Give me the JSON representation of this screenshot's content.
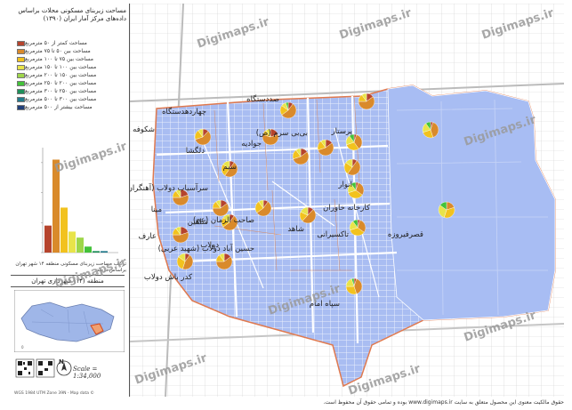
{
  "panel": {
    "title": "مساحت زیربنای مسکونی محلات براساس داده‌های مرکز آمار ایران (۱۳۹۰)"
  },
  "legend": [
    {
      "label": "مساحت کمتر از ۵۰ مترمربع",
      "color": "#b5442d"
    },
    {
      "label": "مساحت بین ۵۰ تا ۷۵ مترمربع",
      "color": "#d98a2b"
    },
    {
      "label": "مساحت بین ۷۵ تا ۱۰۰ مترمربع",
      "color": "#f2c21e"
    },
    {
      "label": "مساحت بین ۱۰۰ تا ۱۵۰ مترمربع",
      "color": "#e8e44a"
    },
    {
      "label": "مساحت بین ۱۵۰ تا ۲۰۰ مترمربع",
      "color": "#9ed64a"
    },
    {
      "label": "مساحت بین ۲۰۰ تا ۲۵۰ مترمربع",
      "color": "#43c23a"
    },
    {
      "label": "مساحت بین ۲۵۰ تا ۳۰۰ مترمربع",
      "color": "#1f8f5a"
    },
    {
      "label": "مساحت بین ۳۰۰ تا ۵۰۰ مترمربع",
      "color": "#237a8c"
    },
    {
      "label": "مساحت بیشتر از ۵۰۰ مترمربع",
      "color": "#213f7a"
    }
  ],
  "histogram": {
    "caption": "ترکیب مساحت زیربنای مسکونی منطقه ۱۴ شهر تهران براساس درصد",
    "values": [
      18,
      62,
      30,
      14,
      10,
      4,
      1,
      1,
      0
    ]
  },
  "inset": {
    "title": "منطقه (۱۴) شهرداری تهران"
  },
  "scale": {
    "text": "Scale = 1:34,000",
    "north": "N"
  },
  "credit": "WGS 1984 UTM Zone 39N - Map data ©",
  "footer": "حقوق مالکیت معنوی این محصول متعلق به سایت www.digimaps.ir بوده و تمامی حقوق آن محفوظ است.",
  "watermark": "Digimaps.ir",
  "neighborhoods": [
    {
      "name": "صددستگاه"
    },
    {
      "name": "چهاردهدستگاه"
    },
    {
      "name": "شکوفه"
    },
    {
      "name": "دلگشا"
    },
    {
      "name": "جوادیه"
    },
    {
      "name": "بی‌بی سرم (ص)"
    },
    {
      "name": "پرستار"
    },
    {
      "name": "سیم"
    },
    {
      "name": "سرآسیاب دولاب (آهنگران)"
    },
    {
      "name": "انوار"
    },
    {
      "name": "مینا"
    },
    {
      "name": "شاهین"
    },
    {
      "name": "صاحب الزمان (عج)"
    },
    {
      "name": "شاهد"
    },
    {
      "name": "تاکسیرانی"
    },
    {
      "name": "قصرفیروزه"
    },
    {
      "name": "عارف"
    },
    {
      "name": "دولاب"
    },
    {
      "name": "حسین آباد دولاب (شهید عربی)"
    },
    {
      "name": "کارخانه خاوران"
    },
    {
      "name": "کدر باش دولاب"
    },
    {
      "name": "سپاه امام"
    }
  ]
}
